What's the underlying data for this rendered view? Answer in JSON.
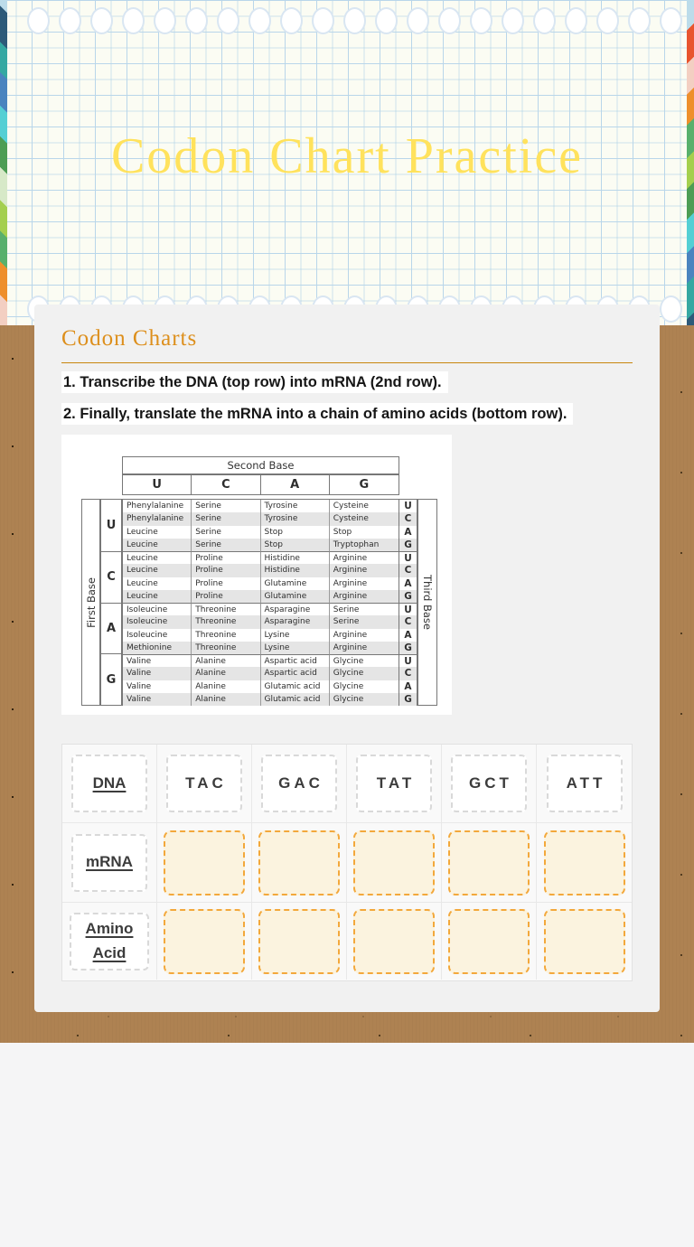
{
  "page": {
    "title": "Codon Chart Practice"
  },
  "card": {
    "heading": "Codon Charts",
    "instructions": [
      "1. Transcribe the DNA (top row) into mRNA (2nd row).",
      "2. Finally, translate the mRNA into a chain of amino acids (bottom row)."
    ]
  },
  "codon_chart": {
    "second_base_label": "Second Base",
    "first_base_label": "First Base",
    "third_base_label": "Third Base",
    "bases": [
      "U",
      "C",
      "A",
      "G"
    ],
    "groups": [
      {
        "base": "U",
        "rows": [
          {
            "cells": [
              "Phenylalanine",
              "Serine",
              "Tyrosine",
              "Cysteine"
            ],
            "third": "U"
          },
          {
            "cells": [
              "Phenylalanine",
              "Serine",
              "Tyrosine",
              "Cysteine"
            ],
            "third": "C"
          },
          {
            "cells": [
              "Leucine",
              "Serine",
              "Stop",
              "Stop"
            ],
            "third": "A"
          },
          {
            "cells": [
              "Leucine",
              "Serine",
              "Stop",
              "Tryptophan"
            ],
            "third": "G"
          }
        ]
      },
      {
        "base": "C",
        "rows": [
          {
            "cells": [
              "Leucine",
              "Proline",
              "Histidine",
              "Arginine"
            ],
            "third": "U"
          },
          {
            "cells": [
              "Leucine",
              "Proline",
              "Histidine",
              "Arginine"
            ],
            "third": "C"
          },
          {
            "cells": [
              "Leucine",
              "Proline",
              "Glutamine",
              "Arginine"
            ],
            "third": "A"
          },
          {
            "cells": [
              "Leucine",
              "Proline",
              "Glutamine",
              "Arginine"
            ],
            "third": "G"
          }
        ]
      },
      {
        "base": "A",
        "rows": [
          {
            "cells": [
              "Isoleucine",
              "Threonine",
              "Asparagine",
              "Serine"
            ],
            "third": "U"
          },
          {
            "cells": [
              "Isoleucine",
              "Threonine",
              "Asparagine",
              "Serine"
            ],
            "third": "C"
          },
          {
            "cells": [
              "Isoleucine",
              "Threonine",
              "Lysine",
              "Arginine"
            ],
            "third": "A"
          },
          {
            "cells": [
              "Methionine",
              "Threonine",
              "Lysine",
              "Arginine"
            ],
            "third": "G"
          }
        ]
      },
      {
        "base": "G",
        "rows": [
          {
            "cells": [
              "Valine",
              "Alanine",
              "Aspartic acid",
              "Glycine"
            ],
            "third": "U"
          },
          {
            "cells": [
              "Valine",
              "Alanine",
              "Aspartic acid",
              "Glycine"
            ],
            "third": "C"
          },
          {
            "cells": [
              "Valine",
              "Alanine",
              "Glutamic acid",
              "Glycine"
            ],
            "third": "A"
          },
          {
            "cells": [
              "Valine",
              "Alanine",
              "Glutamic acid",
              "Glycine"
            ],
            "third": "G"
          }
        ]
      }
    ]
  },
  "worksheet": {
    "row_labels": [
      "DNA",
      "mRNA",
      "Amino Acid"
    ],
    "dna_codons": [
      "TAC",
      "GAC",
      "TAT",
      "GCT",
      "ATT"
    ],
    "mrna_blank_count": 5,
    "amino_acid_blank_count": 5
  },
  "colors": {
    "title_yellow": "#ffe25c",
    "heading_orange": "#dd8f1c",
    "rule_orange": "#c8860e",
    "blank_border_orange": "#f3a83b",
    "blank_fill_cream": "#fbf3df",
    "kraft_brown": "#ae8252",
    "card_gray": "#f1f1f1",
    "bottom_gray": "#f5f5f6"
  }
}
